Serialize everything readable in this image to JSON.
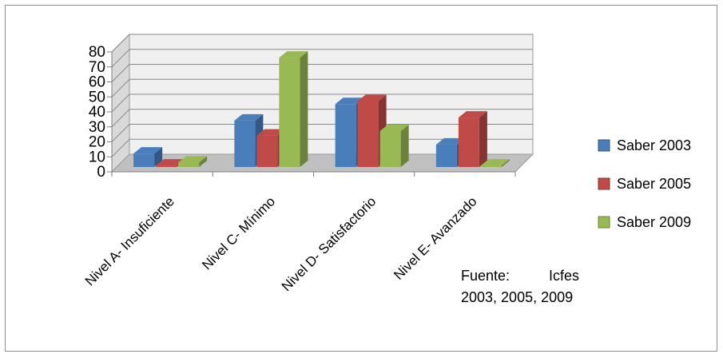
{
  "chart_data": {
    "type": "bar",
    "categories": [
      "Nivel A- Insuficiente",
      "Nivel C- Mínimo",
      "Nivel D- Satisfactorio",
      "Nivel E- Avanzado"
    ],
    "series": [
      {
        "name": "Saber 2003",
        "values": [
          9,
          31,
          42,
          15
        ]
      },
      {
        "name": "Saber 2005",
        "values": [
          1,
          21,
          44,
          33
        ]
      },
      {
        "name": "Saber 2009",
        "values": [
          3,
          73,
          24,
          1
        ]
      }
    ],
    "colors": [
      "#4a7ebb",
      "#be4b48",
      "#98b954"
    ],
    "title": "",
    "xlabel": "",
    "ylabel": "",
    "ylim": [
      0,
      80
    ],
    "yticks": [
      0,
      10,
      20,
      30,
      40,
      50,
      60,
      70,
      80
    ],
    "grid": true,
    "legend_position": "right",
    "style": "3d-clustered-column"
  },
  "source_note": "Fuente: Icfes 2003, 2005, 2009"
}
